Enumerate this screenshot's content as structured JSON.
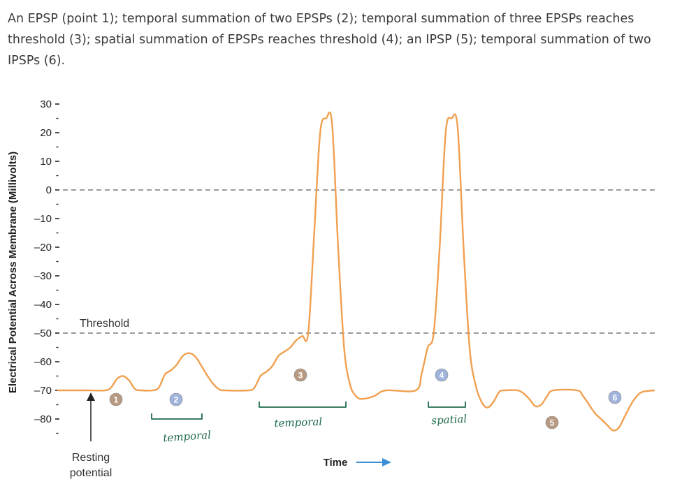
{
  "caption": "An EPSP (point 1); temporal summation of two EPSPs (2); temporal summation of three EPSPs reaches threshold (3); spatial summation of EPSPs reaches threshold (4); an IPSP (5); temporal summation of two IPSPs (6).",
  "chart_data": {
    "type": "line",
    "ylabel": "Electrical Potential Across Membrane (Millivolts)",
    "xlabel": "Time",
    "ylim": [
      -85,
      30
    ],
    "yticks": [
      "30",
      "20",
      "10",
      "0",
      "–10",
      "–20",
      "–30",
      "–40",
      "–50",
      "–60",
      "–70",
      "–80"
    ],
    "ytick_values": [
      30,
      20,
      10,
      0,
      -10,
      -20,
      -30,
      -40,
      -50,
      -60,
      -70,
      -80
    ],
    "reference_lines": [
      {
        "y": 0,
        "label": ""
      },
      {
        "y": -50,
        "label": "Threshold"
      }
    ],
    "resting_label": "Resting\npotential",
    "markers": [
      {
        "label": "1",
        "color": "#b89a82"
      },
      {
        "label": "2",
        "color": "#9fb3dc"
      },
      {
        "label": "3",
        "color": "#b89a82"
      },
      {
        "label": "4",
        "color": "#9fb3dc"
      },
      {
        "label": "5",
        "color": "#b89a82"
      },
      {
        "label": "6",
        "color": "#9fb3dc"
      }
    ],
    "handwritten": [
      "temporal",
      "temporal",
      "spatial"
    ],
    "line_color": "#f0a050",
    "points": [
      [
        0,
        -70
      ],
      [
        5,
        -70
      ],
      [
        8,
        -70
      ],
      [
        9,
        -69
      ],
      [
        10,
        -66
      ],
      [
        11,
        -65
      ],
      [
        12,
        -66.5
      ],
      [
        13,
        -69.5
      ],
      [
        14,
        -70
      ],
      [
        16,
        -70
      ],
      [
        17,
        -69
      ],
      [
        18,
        -64.5
      ],
      [
        19,
        -63
      ],
      [
        20,
        -61
      ],
      [
        21,
        -58
      ],
      [
        22,
        -57
      ],
      [
        23,
        -58
      ],
      [
        24,
        -61
      ],
      [
        25,
        -64.5
      ],
      [
        26,
        -67.5
      ],
      [
        27,
        -69.5
      ],
      [
        28,
        -70
      ],
      [
        32,
        -70
      ],
      [
        33,
        -69
      ],
      [
        34,
        -65
      ],
      [
        35,
        -63.5
      ],
      [
        36,
        -61.5
      ],
      [
        37,
        -58
      ],
      [
        38,
        -56.5
      ],
      [
        39,
        -55
      ],
      [
        40,
        -52.5
      ],
      [
        41,
        -51
      ],
      [
        42,
        -50
      ],
      [
        43,
        -15
      ],
      [
        44,
        20
      ],
      [
        45,
        25
      ],
      [
        46,
        23
      ],
      [
        47,
        -20
      ],
      [
        48,
        -55
      ],
      [
        49,
        -68
      ],
      [
        50,
        -72
      ],
      [
        51,
        -73
      ],
      [
        53,
        -72
      ],
      [
        55,
        -70
      ],
      [
        60,
        -70
      ],
      [
        61,
        -64
      ],
      [
        62,
        -55
      ],
      [
        63,
        -50
      ],
      [
        64,
        -20
      ],
      [
        65,
        20
      ],
      [
        66,
        25
      ],
      [
        67,
        22
      ],
      [
        68,
        -20
      ],
      [
        69,
        -55
      ],
      [
        70,
        -68
      ],
      [
        71,
        -74
      ],
      [
        72,
        -76
      ],
      [
        73,
        -74
      ],
      [
        74,
        -70.5
      ],
      [
        75,
        -70
      ],
      [
        77,
        -70
      ],
      [
        78,
        -71
      ],
      [
        79,
        -73
      ],
      [
        80,
        -75.5
      ],
      [
        81,
        -75
      ],
      [
        82,
        -72
      ],
      [
        83,
        -70
      ],
      [
        87,
        -70
      ],
      [
        88,
        -72
      ],
      [
        89,
        -75
      ],
      [
        90,
        -78
      ],
      [
        91,
        -80
      ],
      [
        92,
        -82
      ],
      [
        93,
        -84
      ],
      [
        94,
        -83
      ],
      [
        95,
        -79
      ],
      [
        96,
        -75
      ],
      [
        97,
        -72
      ],
      [
        98,
        -70.5
      ],
      [
        100,
        -70
      ]
    ]
  }
}
